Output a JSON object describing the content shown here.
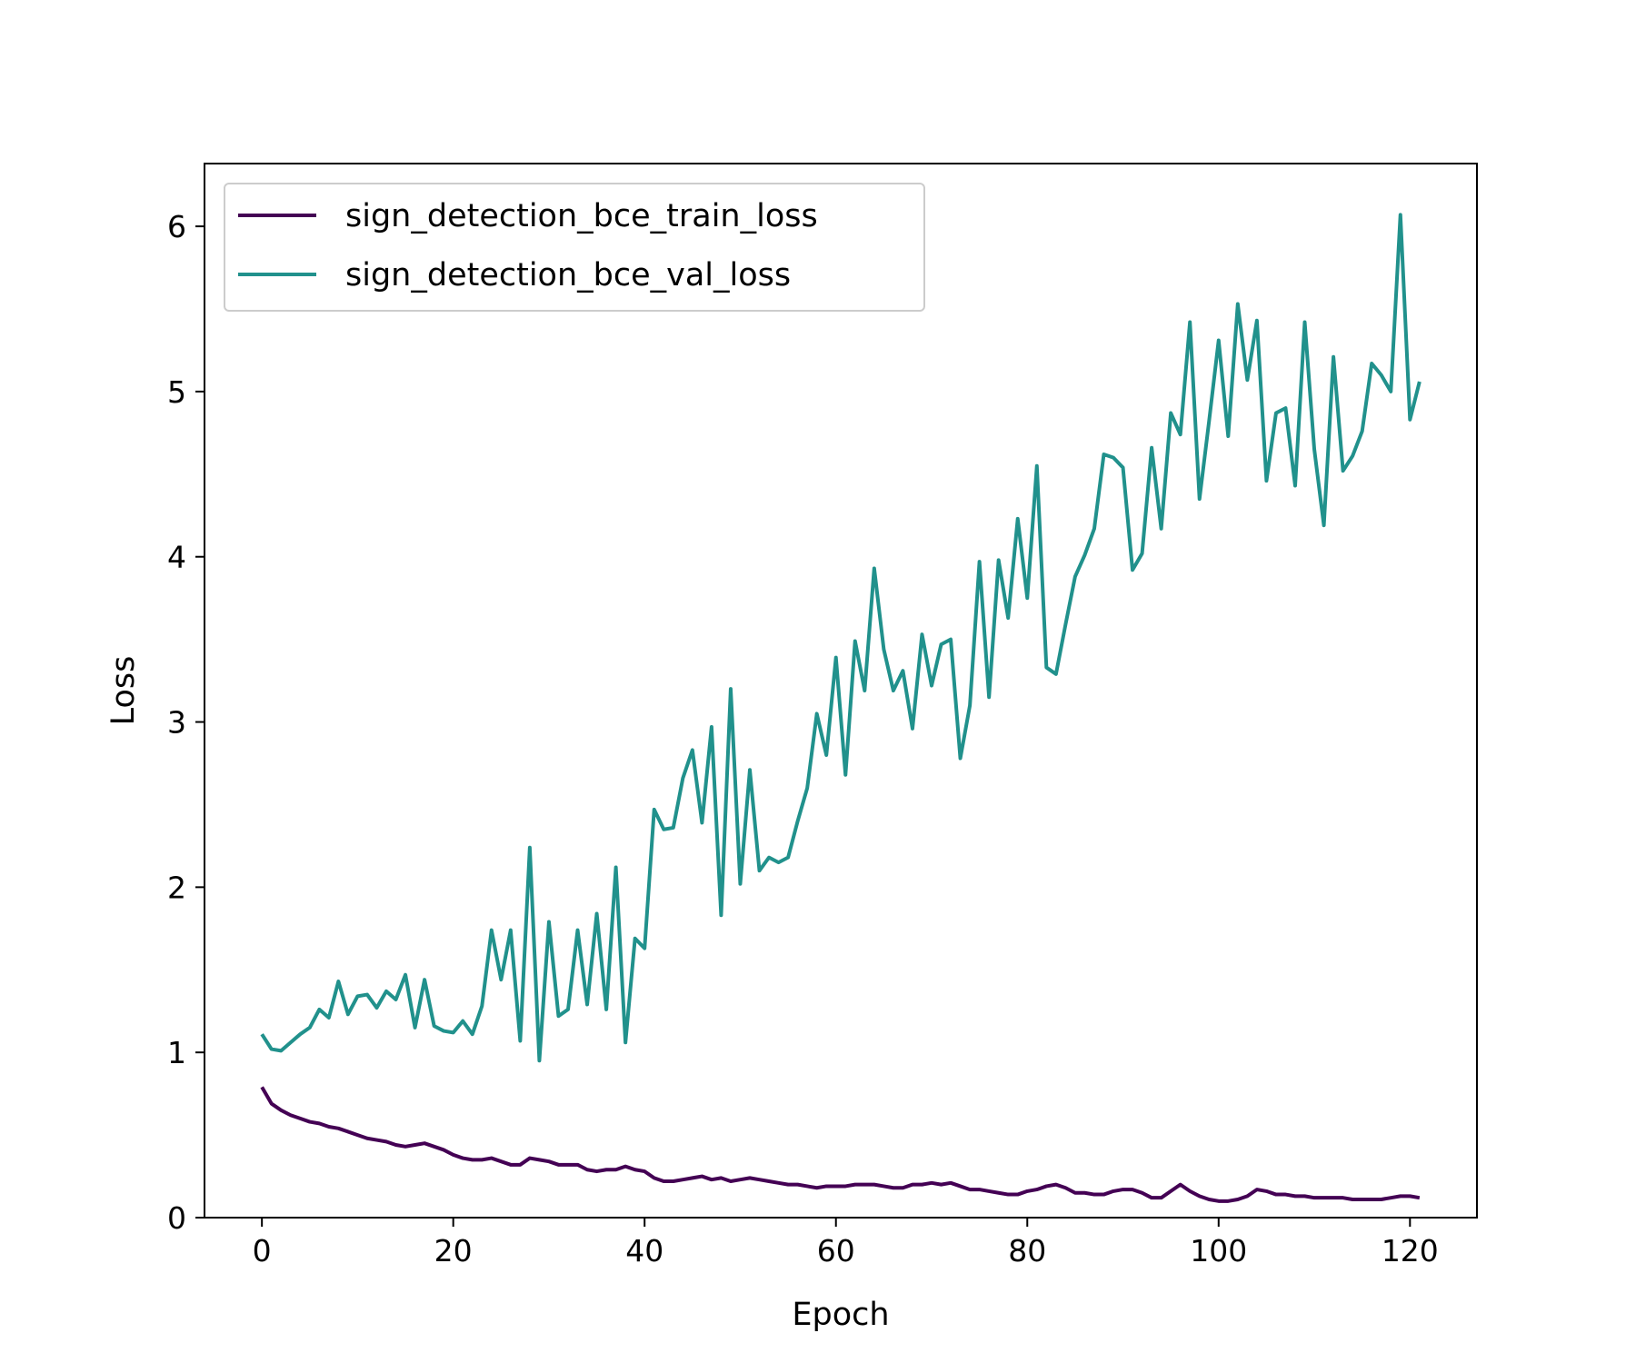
{
  "chart_data": {
    "type": "line",
    "title": "",
    "xlabel": "Epoch",
    "ylabel": "Loss",
    "xlim": [
      -6,
      127
    ],
    "ylim": [
      0,
      6.38
    ],
    "xticks": [
      0,
      20,
      40,
      60,
      80,
      100,
      120
    ],
    "yticks": [
      0,
      1,
      2,
      3,
      4,
      5,
      6
    ],
    "grid": false,
    "legend_position": "top-left",
    "series": [
      {
        "name": "sign_detection_bce_train_loss",
        "color": "#440154",
        "values": [
          0.79,
          0.69,
          0.65,
          0.62,
          0.6,
          0.58,
          0.57,
          0.55,
          0.54,
          0.52,
          0.5,
          0.48,
          0.47,
          0.46,
          0.44,
          0.43,
          0.44,
          0.45,
          0.43,
          0.41,
          0.38,
          0.36,
          0.35,
          0.35,
          0.36,
          0.34,
          0.32,
          0.32,
          0.36,
          0.35,
          0.34,
          0.32,
          0.32,
          0.32,
          0.29,
          0.28,
          0.29,
          0.29,
          0.31,
          0.29,
          0.28,
          0.24,
          0.22,
          0.22,
          0.23,
          0.24,
          0.25,
          0.23,
          0.24,
          0.22,
          0.23,
          0.24,
          0.23,
          0.22,
          0.21,
          0.2,
          0.2,
          0.19,
          0.18,
          0.19,
          0.19,
          0.19,
          0.2,
          0.2,
          0.2,
          0.19,
          0.18,
          0.18,
          0.2,
          0.2,
          0.21,
          0.2,
          0.21,
          0.19,
          0.17,
          0.17,
          0.16,
          0.15,
          0.14,
          0.14,
          0.16,
          0.17,
          0.19,
          0.2,
          0.18,
          0.15,
          0.15,
          0.14,
          0.14,
          0.16,
          0.17,
          0.17,
          0.15,
          0.12,
          0.12,
          0.16,
          0.2,
          0.16,
          0.13,
          0.11,
          0.1,
          0.1,
          0.11,
          0.13,
          0.17,
          0.16,
          0.14,
          0.14,
          0.13,
          0.13,
          0.12,
          0.12,
          0.12,
          0.12,
          0.11,
          0.11,
          0.11,
          0.11,
          0.12,
          0.13,
          0.13,
          0.12
        ]
      },
      {
        "name": "sign_detection_bce_val_loss",
        "color": "#21918c",
        "values": [
          1.11,
          1.02,
          1.01,
          1.06,
          1.11,
          1.15,
          1.26,
          1.21,
          1.43,
          1.23,
          1.34,
          1.35,
          1.27,
          1.37,
          1.32,
          1.47,
          1.15,
          1.44,
          1.16,
          1.13,
          1.12,
          1.19,
          1.11,
          1.28,
          1.74,
          1.44,
          1.74,
          1.07,
          2.24,
          0.95,
          1.79,
          1.22,
          1.26,
          1.74,
          1.29,
          1.84,
          1.26,
          2.12,
          1.06,
          1.69,
          1.63,
          2.47,
          2.35,
          2.36,
          2.66,
          2.83,
          2.39,
          2.97,
          1.83,
          3.2,
          2.02,
          2.71,
          2.1,
          2.18,
          2.15,
          2.18,
          2.4,
          2.6,
          3.05,
          2.8,
          3.39,
          2.68,
          3.49,
          3.19,
          3.93,
          3.44,
          3.19,
          3.31,
          2.96,
          3.53,
          3.22,
          3.47,
          3.5,
          2.78,
          3.1,
          3.97,
          3.15,
          3.98,
          3.63,
          4.23,
          3.75,
          4.55,
          3.33,
          3.29,
          3.59,
          3.88,
          4.01,
          4.17,
          4.62,
          4.6,
          4.54,
          3.92,
          4.02,
          4.66,
          4.17,
          4.87,
          4.74,
          5.42,
          4.35,
          4.82,
          5.31,
          4.73,
          5.53,
          5.07,
          5.43,
          4.46,
          4.87,
          4.9,
          4.43,
          5.42,
          4.65,
          4.19,
          5.21,
          4.52,
          4.61,
          4.76,
          5.17,
          5.1,
          5.0,
          6.07,
          4.83,
          5.06
        ]
      }
    ]
  }
}
